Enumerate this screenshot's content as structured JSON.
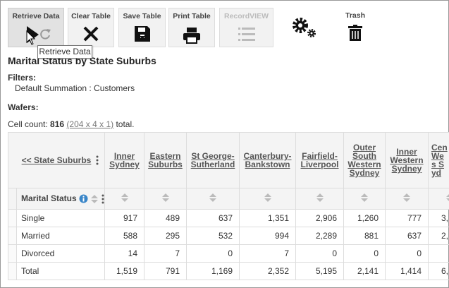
{
  "toolbar": {
    "buttons": [
      "Retrieve Data",
      "Clear Table",
      "Save Table",
      "Print Table",
      "RecordVIEW",
      "Trash"
    ],
    "tooltip": "Retrieve Data"
  },
  "report": {
    "title": "Marital Status by State Suburbs",
    "filters_label": "Filters:",
    "filter": "Default Summation : Customers",
    "wafers_label": "Wafers:",
    "cell_count": {
      "label": "Cell count:",
      "count": "816",
      "dims": "(204 x 4 x 1)",
      "suffix": "total."
    }
  },
  "table": {
    "column_dimension": "<< State Suburbs",
    "row_dimension": "Marital Status",
    "columns": [
      "Inner Sydney",
      "Eastern Suburbs",
      "St George-Sutherland",
      "Canterbury-Bankstown",
      "Fairfield-Liverpool",
      "Outer South Western Sydney",
      "Inner Western Sydney",
      "Cen Wes Syd"
    ],
    "rows": [
      {
        "label": "Single",
        "values": [
          "917",
          "489",
          "637",
          "1,351",
          "2,906",
          "1,260",
          "777",
          "3,"
        ]
      },
      {
        "label": "Married",
        "values": [
          "588",
          "295",
          "532",
          "994",
          "2,289",
          "881",
          "637",
          "2,"
        ]
      },
      {
        "label": "Divorced",
        "values": [
          "14",
          "7",
          "0",
          "7",
          "0",
          "0",
          "0",
          null
        ]
      },
      {
        "label": "Total",
        "values": [
          "1,519",
          "791",
          "1,169",
          "2,352",
          "5,195",
          "2,141",
          "1,414",
          "6,"
        ]
      }
    ]
  }
}
